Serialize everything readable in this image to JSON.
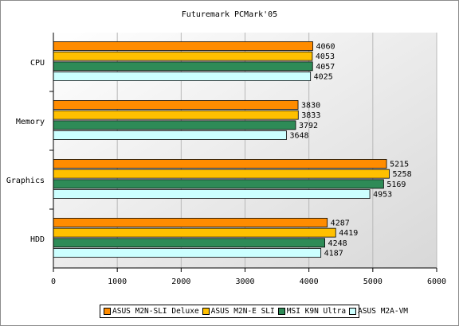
{
  "chart_data": {
    "type": "bar",
    "orientation": "horizontal",
    "title": "Futuremark PCMark'05",
    "categories": [
      "CPU",
      "Memory",
      "Graphics",
      "HDD"
    ],
    "series": [
      {
        "name": "ASUS M2N-SLI Deluxe",
        "color": "#ff8c00",
        "values": [
          4060,
          3830,
          5215,
          4287
        ]
      },
      {
        "name": "ASUS M2N-E SLI",
        "color": "#ffc000",
        "values": [
          4053,
          3833,
          5258,
          4419
        ]
      },
      {
        "name": "MSI K9N Ultra",
        "color": "#2e8b57",
        "values": [
          4057,
          3792,
          5169,
          4248
        ]
      },
      {
        "name": "ASUS M2A-VM",
        "color": "#ccffff",
        "values": [
          4025,
          3648,
          4953,
          4187
        ]
      }
    ],
    "xlim": [
      0,
      6000
    ],
    "xticks": [
      0,
      1000,
      2000,
      3000,
      4000,
      5000,
      6000
    ],
    "grid": true,
    "legend_position": "bottom"
  }
}
